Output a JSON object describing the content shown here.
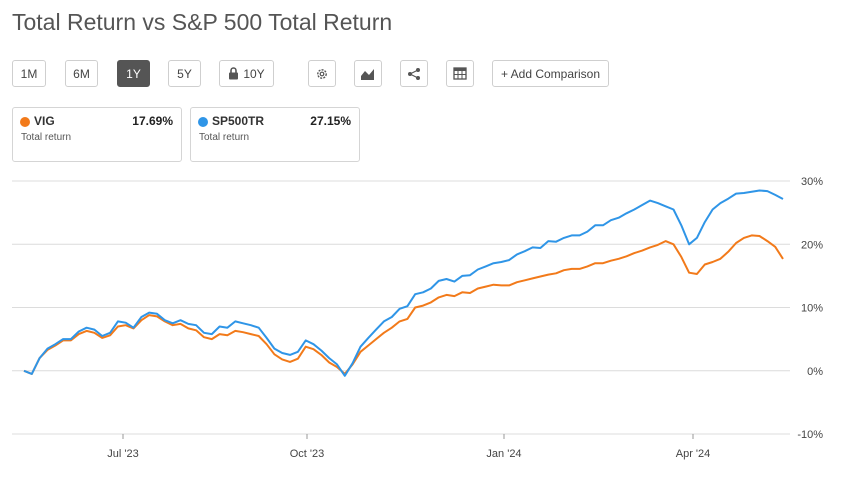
{
  "title": "Total Return vs S&P 500 Total Return",
  "toolbar": {
    "ranges": [
      {
        "label": "1M",
        "active": false
      },
      {
        "label": "6M",
        "active": false
      },
      {
        "label": "1Y",
        "active": true
      },
      {
        "label": "5Y",
        "active": false
      },
      {
        "label": "10Y",
        "active": false,
        "locked": true
      }
    ],
    "icons": [
      "settings-icon",
      "chart-type-icon",
      "share-icon",
      "table-icon"
    ],
    "add_comparison": "+ Add Comparison"
  },
  "legend": [
    {
      "symbol": "VIG",
      "value": "17.69%",
      "subtitle": "Total return",
      "color": "#f27a1a"
    },
    {
      "symbol": "SP500TR",
      "value": "27.15%",
      "subtitle": "Total return",
      "color": "#2f95e7"
    }
  ],
  "chart_data": {
    "type": "line",
    "title": "Total Return vs S&P 500 Total Return",
    "ylim": [
      -10,
      30
    ],
    "yticks": [
      "30%",
      "20%",
      "10%",
      "0%",
      "-10%"
    ],
    "xticks": [
      "Jul '23",
      "Oct '23",
      "Jan '24",
      "Apr '24"
    ],
    "grid": true,
    "series": [
      {
        "name": "SP500TR",
        "color": "#2f95e7",
        "values": [
          0,
          -0.5,
          2,
          3.5,
          4.2,
          5,
          5,
          6.2,
          6.8,
          6.5,
          5.5,
          6,
          7.8,
          7.6,
          6.8,
          8.5,
          9.2,
          9,
          8,
          7.5,
          8,
          7.4,
          7.2,
          6,
          5.8,
          7,
          6.8,
          7.8,
          7.5,
          7.2,
          6.8,
          5.2,
          3.5,
          2.8,
          2.5,
          3,
          4.8,
          4.2,
          3.2,
          2,
          1,
          -0.8,
          1.2,
          3.8,
          5.2,
          6.5,
          7.8,
          8.5,
          9.8,
          10.2,
          12.1,
          12.4,
          13,
          14.2,
          14.5,
          14.1,
          15,
          15.1,
          16,
          16.5,
          17,
          17.2,
          17.5,
          18.4,
          18.9,
          19.5,
          19.4,
          20.5,
          20.4,
          21,
          21.4,
          21.4,
          22,
          23,
          23,
          23.8,
          24.2,
          24.9,
          25.5,
          26.2,
          26.9,
          26.5,
          26,
          25.5,
          23,
          20,
          21,
          23.5,
          25.5,
          26.5,
          27.2,
          28,
          28.1,
          28.3,
          28.5,
          28.4,
          27.8,
          27.15
        ]
      },
      {
        "name": "VIG",
        "color": "#f27a1a",
        "values": [
          0,
          -0.5,
          2,
          3.3,
          4,
          4.8,
          4.8,
          5.8,
          6.3,
          6,
          5.2,
          5.6,
          7,
          7.2,
          6.7,
          8,
          8.8,
          8.6,
          7.8,
          7.2,
          7.4,
          6.7,
          6.4,
          5.3,
          5,
          5.8,
          5.6,
          6.3,
          6.1,
          5.8,
          5.5,
          4.2,
          2.6,
          1.8,
          1.4,
          1.9,
          3.8,
          3.4,
          2.5,
          1.3,
          0.6,
          -0.5,
          1,
          3,
          4,
          5,
          6,
          6.8,
          7.8,
          8.2,
          10,
          10.3,
          10.8,
          11.6,
          12,
          11.8,
          12.4,
          12.3,
          13,
          13.3,
          13.6,
          13.5,
          13.5,
          14,
          14.3,
          14.6,
          14.9,
          15.2,
          15.4,
          15.9,
          16.1,
          16.1,
          16.5,
          17,
          17,
          17.4,
          17.7,
          18.1,
          18.6,
          19,
          19.5,
          19.9,
          20.5,
          20,
          18,
          15.5,
          15.3,
          16.8,
          17.2,
          17.7,
          18.8,
          20.2,
          21,
          21.4,
          21.3,
          20.5,
          19.6,
          17.69
        ]
      }
    ]
  }
}
